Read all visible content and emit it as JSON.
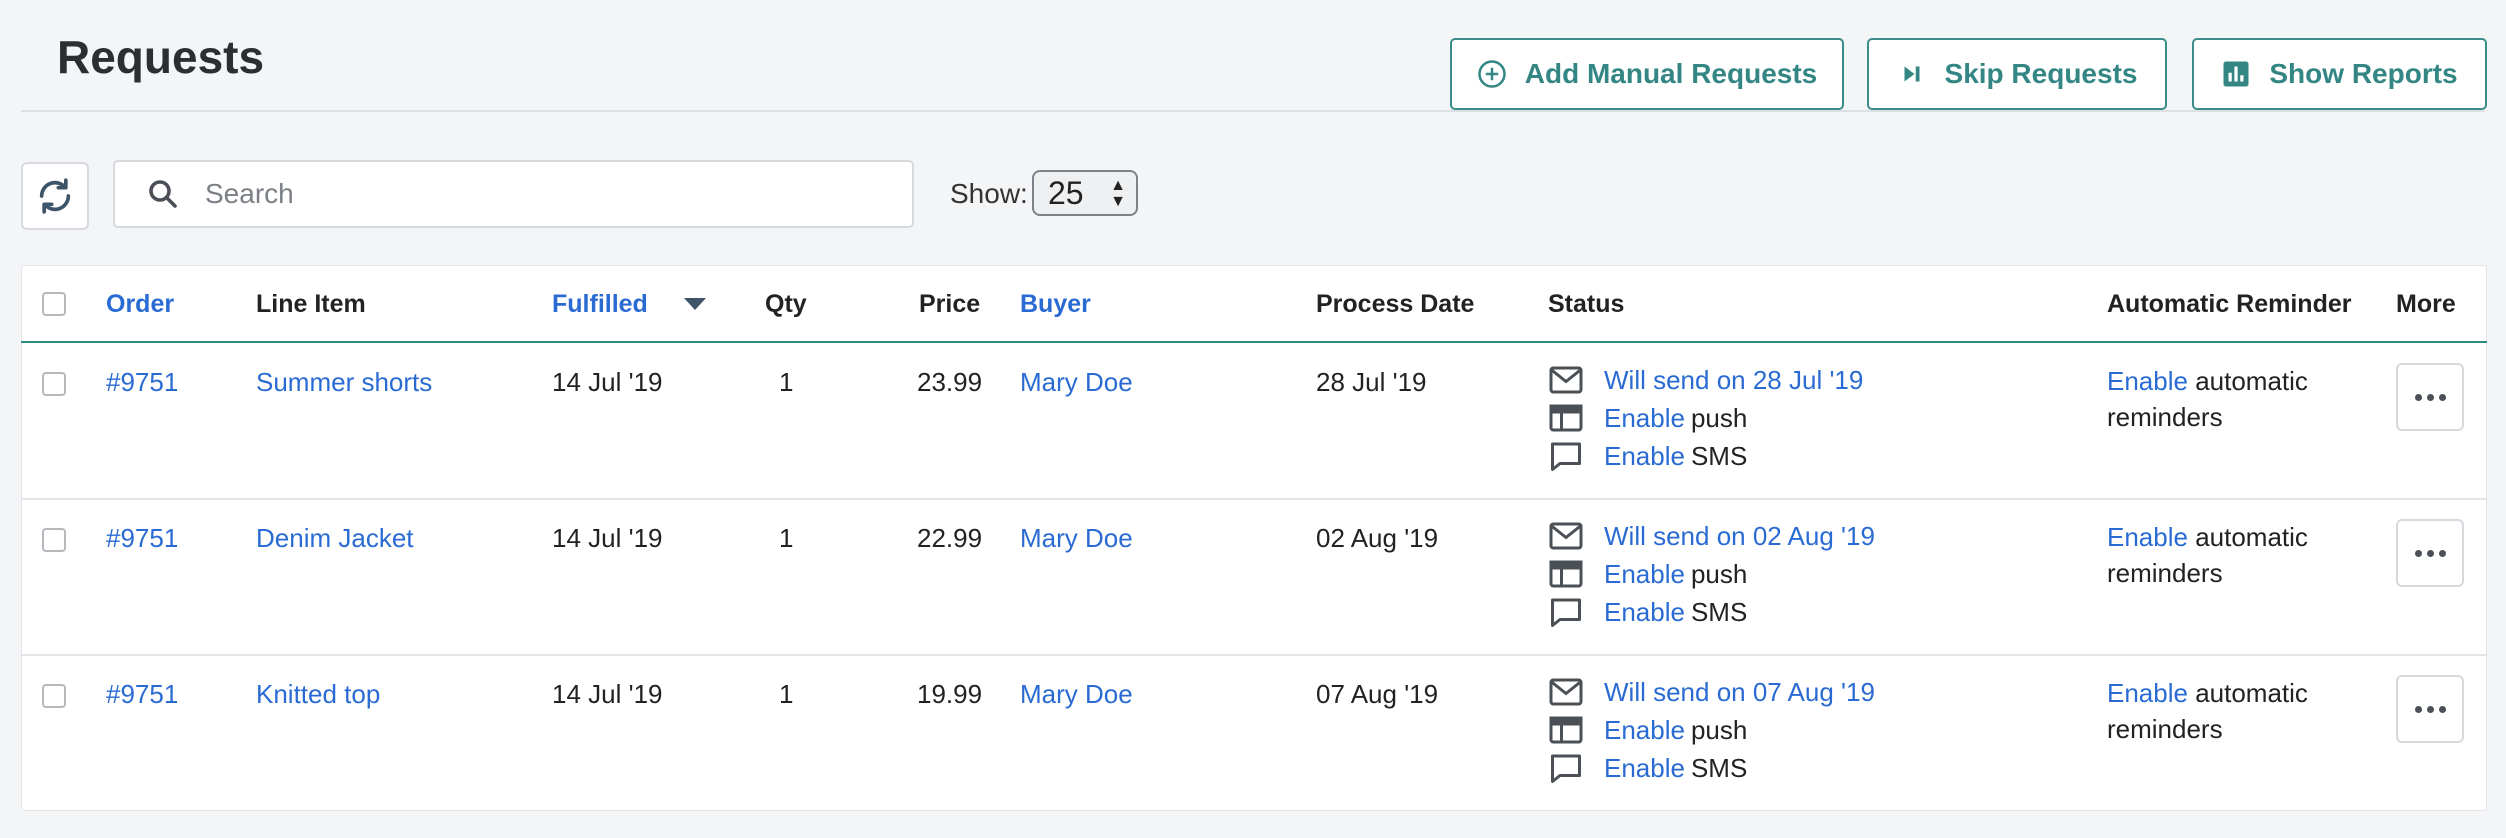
{
  "header": {
    "title": "Requests",
    "add_manual_label": "Add Manual Requests",
    "skip_label": "Skip Requests",
    "reports_label": "Show Reports"
  },
  "toolbar": {
    "search_placeholder": "Search",
    "show_label": "Show:",
    "show_value": "25"
  },
  "columns": {
    "order": "Order",
    "line_item": "Line Item",
    "fulfilled": "Fulfilled",
    "qty": "Qty",
    "price": "Price",
    "buyer": "Buyer",
    "process_date": "Process Date",
    "status": "Status",
    "automatic_reminder": "Automatic Reminder",
    "more": "More"
  },
  "rows": [
    {
      "order": "#9751",
      "line_item": "Summer shorts",
      "fulfilled": "14 Jul '19",
      "qty": "1",
      "price": "23.99",
      "buyer": "Mary Doe",
      "process_date": "28 Jul '19",
      "status_email": "Will send on 28 Jul '19",
      "push_link": "Enable",
      "push_text": "push",
      "sms_link": "Enable",
      "sms_text": "SMS",
      "reminder_link": "Enable",
      "reminder_text": "automatic reminders"
    },
    {
      "order": "#9751",
      "line_item": "Denim Jacket",
      "fulfilled": "14 Jul '19",
      "qty": "1",
      "price": "22.99",
      "buyer": "Mary Doe",
      "process_date": "02 Aug '19",
      "status_email": "Will send on 02 Aug '19",
      "push_link": "Enable",
      "push_text": "push",
      "sms_link": "Enable",
      "sms_text": "SMS",
      "reminder_link": "Enable",
      "reminder_text": "automatic reminders"
    },
    {
      "order": "#9751",
      "line_item": "Knitted top",
      "fulfilled": "14 Jul '19",
      "qty": "1",
      "price": "19.99",
      "buyer": "Mary Doe",
      "process_date": "07 Aug '19",
      "status_email": "Will send on 07 Aug '19",
      "push_link": "Enable",
      "push_text": "push",
      "sms_link": "Enable",
      "sms_text": "SMS",
      "reminder_link": "Enable",
      "reminder_text": "automatic reminders"
    }
  ],
  "colors": {
    "accent": "#338683",
    "link": "#2a6bd3",
    "background": "#f4f5f7"
  },
  "icons": {
    "add": "plus-circle-icon",
    "skip": "skip-forward-icon",
    "reports": "bar-chart-icon",
    "refresh": "refresh-icon",
    "search": "search-icon",
    "sort": "caret-down-icon",
    "email": "mail-icon",
    "push": "browser-window-icon",
    "sms": "chat-bubble-icon",
    "more": "more-dots-icon"
  }
}
